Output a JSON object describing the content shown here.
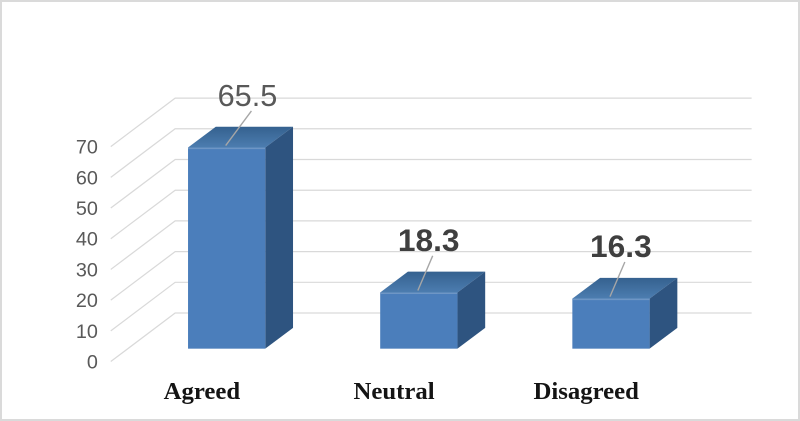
{
  "chart_data": {
    "type": "bar",
    "style": "3d-column",
    "title": "",
    "xlabel": "",
    "ylabel": "",
    "categories": [
      "Agreed",
      "Neutral",
      "Disagreed"
    ],
    "values": [
      65.5,
      18.3,
      16.3
    ],
    "data_labels": [
      "65.5",
      "18.3",
      "16.3"
    ],
    "yticks": [
      0,
      10,
      20,
      30,
      40,
      50,
      60,
      70
    ],
    "ylim": [
      0,
      70
    ],
    "grid": true,
    "legend": false,
    "colors": {
      "bar_front": "#4B7EBB",
      "bar_top_front": "#4C7DB0",
      "bar_top_back": "#35618F",
      "bar_top_edge": "#6E96C5",
      "bar_side": "#2E5480",
      "gridline": "#D9D9D9",
      "leader_line": "#A6A6A6",
      "tick_label": "#595959",
      "data_label_first": "#595959",
      "data_label": "#3F3F3F",
      "category_label": "#141414",
      "figure_border": "#DADADA",
      "background": "#FFFFFF"
    }
  }
}
